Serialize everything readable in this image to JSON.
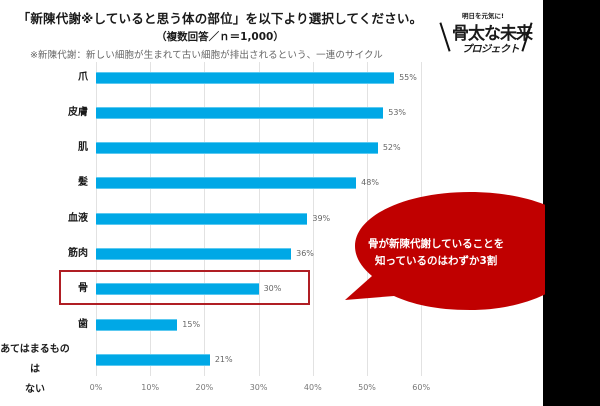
{
  "header": {
    "title": "「新陳代謝※していると思う体の部位」を以下より選択してください。",
    "subtitle": "（複数回答／ｎ＝1,000）",
    "note": "※新陳代謝：新しい細胞が生まれて古い細胞が排出されるという、一連のサイクル"
  },
  "logo": {
    "caption": "明日を元気に!",
    "main": "骨太な未来",
    "sub": "プロジェクト"
  },
  "callout": {
    "line1": "骨が新陳代謝していることを",
    "line2": "知っているのはわずか3割",
    "color": "#c00000"
  },
  "colors": {
    "bar": "#00a8e6",
    "highlight_border": "#b01e24",
    "gridline": "#e2e2e2"
  },
  "chart_data": {
    "type": "bar",
    "orientation": "horizontal",
    "title": "「新陳代謝※していると思う体の部位」を以下より選択してください。",
    "subtitle": "（複数回答／ｎ＝1,000）",
    "xlabel": "",
    "ylabel": "",
    "xlim": [
      0,
      60
    ],
    "x_ticks": [
      "0%",
      "10%",
      "20%",
      "30%",
      "40%",
      "50%",
      "60%"
    ],
    "grid": true,
    "legend": null,
    "categories": [
      "爪",
      "皮膚",
      "肌",
      "髪",
      "血液",
      "筋肉",
      "骨",
      "歯",
      "あてはまるものはない"
    ],
    "category_display": [
      [
        "爪"
      ],
      [
        "皮膚"
      ],
      [
        "肌"
      ],
      [
        "髪"
      ],
      [
        "血液"
      ],
      [
        "筋肉"
      ],
      [
        "骨"
      ],
      [
        "歯"
      ],
      [
        "あてはまるものは",
        "ない"
      ]
    ],
    "values": [
      55,
      53,
      52,
      48,
      39,
      36,
      30,
      15,
      21
    ],
    "value_labels": [
      "55%",
      "53%",
      "52%",
      "48%",
      "39%",
      "36%",
      "30%",
      "15%",
      "21%"
    ],
    "highlighted_category": "骨",
    "annotation": "骨が新陳代謝していることを知っているのはわずか3割"
  }
}
